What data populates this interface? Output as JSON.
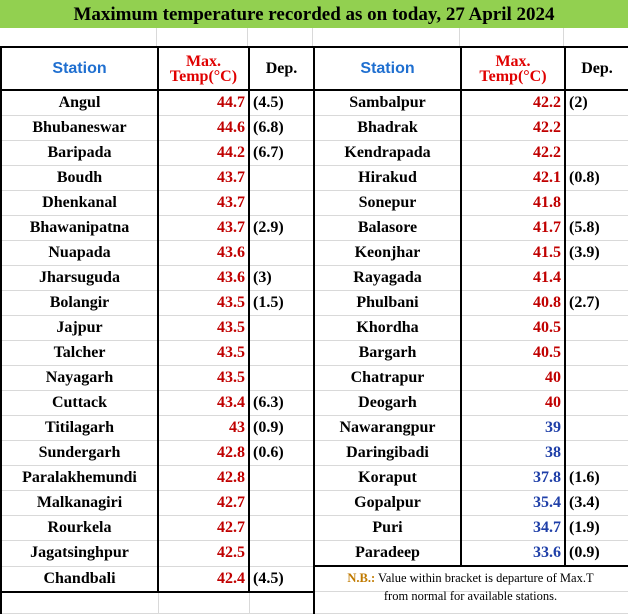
{
  "title": "Maximum temperature recorded as on today, 27 April 2024",
  "headers": {
    "station": "Station",
    "max_line1": "Max.",
    "max_line2": "Temp(°C)",
    "dep": "Dep."
  },
  "left": [
    {
      "station": "Angul",
      "max": "44.7",
      "dep": "(4.5)"
    },
    {
      "station": "Bhubaneswar",
      "max": "44.6",
      "dep": "(6.8)"
    },
    {
      "station": "Baripada",
      "max": "44.2",
      "dep": "(6.7)"
    },
    {
      "station": "Boudh",
      "max": "43.7",
      "dep": ""
    },
    {
      "station": "Dhenkanal",
      "max": "43.7",
      "dep": ""
    },
    {
      "station": "Bhawanipatna",
      "max": "43.7",
      "dep": "(2.9)"
    },
    {
      "station": "Nuapada",
      "max": "43.6",
      "dep": ""
    },
    {
      "station": "Jharsuguda",
      "max": "43.6",
      "dep": "(3)"
    },
    {
      "station": "Bolangir",
      "max": "43.5",
      "dep": "(1.5)"
    },
    {
      "station": "Jajpur",
      "max": "43.5",
      "dep": ""
    },
    {
      "station": "Talcher",
      "max": "43.5",
      "dep": ""
    },
    {
      "station": "Nayagarh",
      "max": "43.5",
      "dep": ""
    },
    {
      "station": "Cuttack",
      "max": "43.4",
      "dep": "(6.3)"
    },
    {
      "station": "Titilagarh",
      "max": "43",
      "dep": "(0.9)"
    },
    {
      "station": "Sundergarh",
      "max": "42.8",
      "dep": "(0.6)"
    },
    {
      "station": "Paralakhemundi",
      "max": "42.8",
      "dep": ""
    },
    {
      "station": "Malkanagiri",
      "max": "42.7",
      "dep": ""
    },
    {
      "station": "Rourkela",
      "max": "42.7",
      "dep": ""
    },
    {
      "station": "Jagatsinghpur",
      "max": "42.5",
      "dep": ""
    },
    {
      "station": "Chandbali",
      "max": "42.4",
      "dep": "(4.5)"
    }
  ],
  "right": [
    {
      "station": "Sambalpur",
      "max": "42.2",
      "dep": "(2)"
    },
    {
      "station": "Bhadrak",
      "max": "42.2",
      "dep": ""
    },
    {
      "station": "Kendrapada",
      "max": "42.2",
      "dep": ""
    },
    {
      "station": "Hirakud",
      "max": "42.1",
      "dep": "(0.8)"
    },
    {
      "station": "Sonepur",
      "max": "41.8",
      "dep": ""
    },
    {
      "station": "Balasore",
      "max": "41.7",
      "dep": "(5.8)"
    },
    {
      "station": "Keonjhar",
      "max": "41.5",
      "dep": "(3.9)"
    },
    {
      "station": "Rayagada",
      "max": "41.4",
      "dep": ""
    },
    {
      "station": "Phulbani",
      "max": "40.8",
      "dep": "(2.7)"
    },
    {
      "station": "Khordha",
      "max": "40.5",
      "dep": ""
    },
    {
      "station": "Bargarh",
      "max": "40.5",
      "dep": ""
    },
    {
      "station": "Chatrapur",
      "max": "40",
      "dep": ""
    },
    {
      "station": "Deogarh",
      "max": "40",
      "dep": ""
    },
    {
      "station": "Nawarangpur",
      "max": "39",
      "dep": ""
    },
    {
      "station": "Daringibadi",
      "max": "38",
      "dep": ""
    },
    {
      "station": "Koraput",
      "max": "37.8",
      "dep": "(1.6)"
    },
    {
      "station": "Gopalpur",
      "max": "35.4",
      "dep": "(3.4)"
    },
    {
      "station": "Puri",
      "max": "34.7",
      "dep": "(1.9)"
    },
    {
      "station": "Paradeep",
      "max": "33.6",
      "dep": "(0.9)"
    }
  ],
  "blue_from_index": 13,
  "note": {
    "label": "N.B.:",
    "line1": " Value within bracket is departure of Max.T",
    "line2": "from normal for available stations."
  },
  "colors": {
    "title_bg": "#92d050",
    "header_station": "#1f6fd0",
    "header_max": "#e00000",
    "value_red": "#c00000",
    "value_blue": "#1f3fa8",
    "note_label": "#c07a00"
  }
}
